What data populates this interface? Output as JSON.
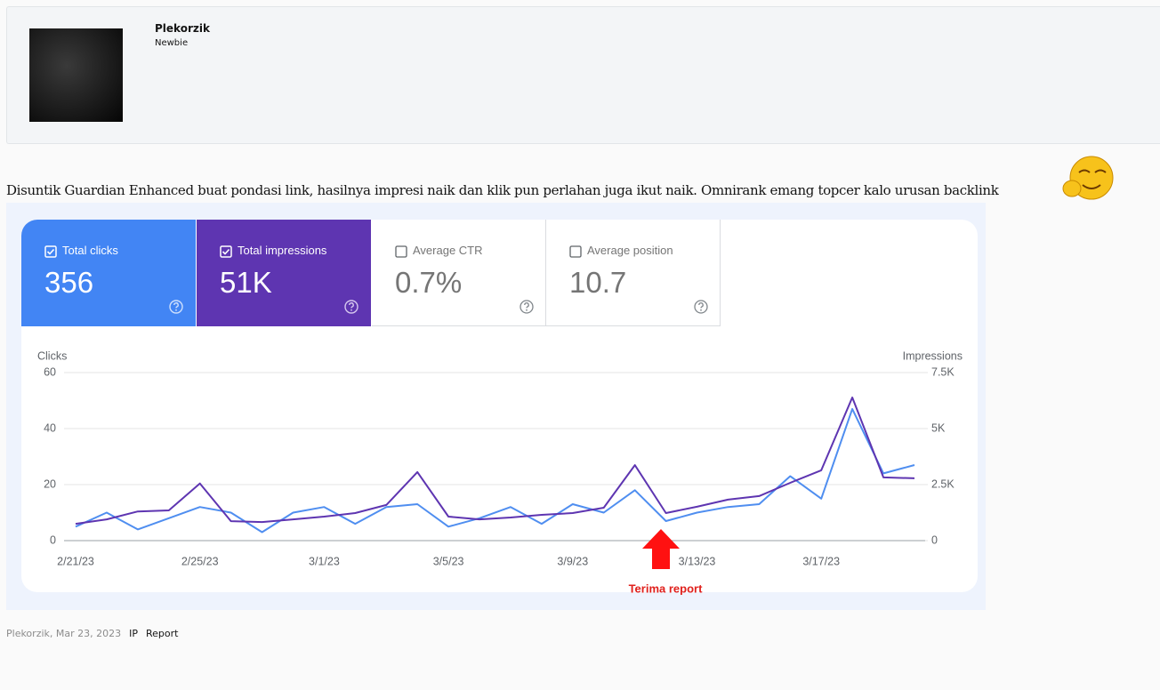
{
  "user": {
    "name": "Plekorzik",
    "rank": "Newbie"
  },
  "post": {
    "text": "Disuntik Guardian Enhanced buat pondasi link, hasilnya impresi naik dan klik pun perlahan juga ikut naik. Omnirank emang topcer kalo urusan backlink"
  },
  "metrics": [
    {
      "label": "Total clicks",
      "value": "356"
    },
    {
      "label": "Total impressions",
      "value": "51K"
    },
    {
      "label": "Average CTR",
      "value": "0.7%"
    },
    {
      "label": "Average position",
      "value": "10.7"
    }
  ],
  "chart_data": {
    "type": "line",
    "y_label": "Clicks",
    "y2_label": "Impressions",
    "categories": [
      "2/21/23",
      null,
      null,
      null,
      "2/25/23",
      null,
      null,
      null,
      "3/1/23",
      null,
      null,
      null,
      "3/5/23",
      null,
      null,
      null,
      "3/9/23",
      null,
      null,
      null,
      "3/13/23",
      null,
      null,
      null,
      "3/17/23",
      null,
      null,
      null
    ],
    "series": [
      {
        "color": "#4f8ef0",
        "values": [
          5,
          10,
          4,
          8,
          12,
          10,
          3,
          10,
          12,
          6,
          12,
          13,
          5,
          8,
          12,
          6,
          13,
          10,
          18,
          7,
          10,
          12,
          13,
          23,
          15,
          47,
          24,
          27
        ]
      },
      {
        "color": "#5e35b1",
        "axis": "y2",
        "values": [
          750,
          950,
          1300,
          1350,
          2550,
          870,
          830,
          950,
          1070,
          1230,
          1590,
          3060,
          1070,
          950,
          1030,
          1150,
          1230,
          1470,
          3370,
          1230,
          1510,
          1830,
          1990,
          2580,
          3140,
          6390,
          2820,
          2780
        ]
      }
    ],
    "ylim": [
      0,
      60
    ],
    "yticks": [
      0,
      20,
      40,
      60
    ],
    "y2lim": [
      0,
      7500
    ],
    "y2ticks": [
      0,
      {
        "value": 2500,
        "label": "2.5K"
      },
      {
        "value": 5000,
        "label": "5K"
      },
      {
        "value": 7500,
        "label": "7.5K"
      }
    ],
    "grid": true,
    "annotation": "Terima report"
  },
  "footer": {
    "byline": "Plekorzik, Mar 23, 2023",
    "links": [
      "IP",
      "Report"
    ]
  }
}
